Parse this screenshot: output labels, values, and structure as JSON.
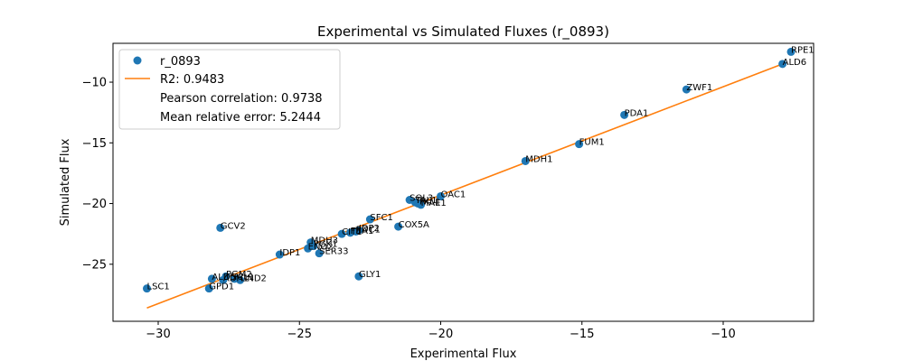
{
  "chart_data": {
    "type": "scatter",
    "title": "Experimental vs Simulated Fluxes (r_0893)",
    "xlabel": "Experimental Flux",
    "ylabel": "Simulated Flux",
    "xlim": [
      -31.6,
      -6.8
    ],
    "ylim": [
      -29.7,
      -6.8
    ],
    "xticks": [
      -30,
      -25,
      -20,
      -15,
      -10
    ],
    "yticks": [
      -25,
      -20,
      -15,
      -10
    ],
    "tick_format": "unicode-minus",
    "grid": false,
    "legend_position": "upper-left",
    "legend": [
      {
        "kind": "marker",
        "text": "r_0893"
      },
      {
        "kind": "line",
        "text": "R2: 0.9483"
      },
      {
        "kind": "text",
        "text": "Pearson correlation: 0.9738"
      },
      {
        "kind": "text",
        "text": "Mean relative error: 5.2444"
      }
    ],
    "colors": {
      "points": "#1f77b4",
      "fit": "#ff7f0e"
    },
    "fit_line": {
      "x": [
        -30.4,
        -7.9
      ],
      "y": [
        -28.6,
        -8.5
      ]
    },
    "points": [
      {
        "label": "RPE1",
        "x": -7.6,
        "y": -7.5
      },
      {
        "label": "ALD6",
        "x": -7.9,
        "y": -8.5
      },
      {
        "label": "ZWF1",
        "x": -11.3,
        "y": -10.6
      },
      {
        "label": "PDA1",
        "x": -13.5,
        "y": -12.7
      },
      {
        "label": "FUM1",
        "x": -15.1,
        "y": -15.1
      },
      {
        "label": "MDH1",
        "x": -17.0,
        "y": -16.5
      },
      {
        "label": "OAC1",
        "x": -20.0,
        "y": -19.4
      },
      {
        "label": "SOL3",
        "x": -21.1,
        "y": -19.7
      },
      {
        "label": "TAL1",
        "x": -20.9,
        "y": -19.9
      },
      {
        "label": "TKL1",
        "x": -20.8,
        "y": -20.0
      },
      {
        "label": "MAE1",
        "x": -20.7,
        "y": -20.1
      },
      {
        "label": "SFC1",
        "x": -22.5,
        "y": -21.3
      },
      {
        "label": "COX5A",
        "x": -21.5,
        "y": -21.9
      },
      {
        "label": "GCV2",
        "x": -27.8,
        "y": -22.0
      },
      {
        "label": "IDP2",
        "x": -22.9,
        "y": -22.2
      },
      {
        "label": "PDC1",
        "x": -23.0,
        "y": -22.3
      },
      {
        "label": "FBA1",
        "x": -23.2,
        "y": -22.4
      },
      {
        "label": "CIT1",
        "x": -23.5,
        "y": -22.5
      },
      {
        "label": "MDH3",
        "x": -24.6,
        "y": -23.2
      },
      {
        "label": "PGK1",
        "x": -24.5,
        "y": -23.5
      },
      {
        "label": "ENO2",
        "x": -24.7,
        "y": -23.7
      },
      {
        "label": "SER33",
        "x": -24.3,
        "y": -24.1
      },
      {
        "label": "IDP1",
        "x": -25.7,
        "y": -24.2
      },
      {
        "label": "GLY1",
        "x": -22.9,
        "y": -26.0
      },
      {
        "label": "PGM2",
        "x": -27.6,
        "y": -26.0
      },
      {
        "label": "ALD5",
        "x": -28.1,
        "y": -26.2
      },
      {
        "label": "ADH1",
        "x": -27.7,
        "y": -26.3
      },
      {
        "label": "ICL1",
        "x": -27.3,
        "y": -26.2
      },
      {
        "label": "GND2",
        "x": -27.1,
        "y": -26.3
      },
      {
        "label": "GPD1",
        "x": -28.2,
        "y": -27.0
      },
      {
        "label": "LSC1",
        "x": -30.4,
        "y": -27.0
      }
    ]
  }
}
